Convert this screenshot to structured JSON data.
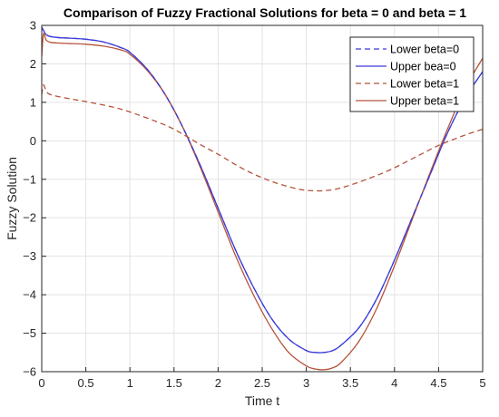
{
  "chart_data": {
    "type": "line",
    "title": "Comparison of Fuzzy Fractional Solutions for beta = 0 and beta = 1",
    "xlabel": "Time t",
    "ylabel": "Fuzzy Solution",
    "xlim": [
      0,
      5
    ],
    "ylim": [
      -6,
      3
    ],
    "grid": true,
    "legend_position": "top-right",
    "x_ticks": [
      0,
      0.5,
      1,
      1.5,
      2,
      2.5,
      3,
      3.5,
      4,
      4.5,
      5
    ],
    "x_tick_labels": [
      "0",
      "0.5",
      "1",
      "1.5",
      "2",
      "2.5",
      "3",
      "3.5",
      "4",
      "4.5",
      "5"
    ],
    "y_ticks": [
      -6,
      -5,
      -4,
      -3,
      -2,
      -1,
      0,
      1,
      2,
      3
    ],
    "y_tick_labels": [
      "−6",
      "−5",
      "−4",
      "−3",
      "−2",
      "−1",
      "0",
      "1",
      "2",
      "3"
    ],
    "legend": {
      "entries": [
        "Lower beta=0",
        "Upper bea=0",
        "Lower beta=1",
        "Upper beta=1"
      ]
    },
    "series": [
      {
        "name": "Lower beta=0",
        "color": "#3c3cd8",
        "dash": "dashed",
        "x": [
          0,
          0.02,
          0.05,
          0.1,
          0.2,
          0.3,
          0.5,
          0.7,
          0.9,
          1.0,
          1.2,
          1.4,
          1.6,
          1.8,
          2.0,
          2.2,
          2.4,
          2.6,
          2.8,
          3.0,
          3.1,
          3.2,
          3.3,
          3.4,
          3.6,
          3.8,
          4.0,
          4.2,
          4.4,
          4.6,
          4.8,
          5.0
        ],
        "values": [
          2.95,
          2.87,
          2.76,
          2.71,
          2.68,
          2.67,
          2.64,
          2.57,
          2.42,
          2.3,
          1.85,
          1.2,
          0.35,
          -0.65,
          -1.75,
          -2.85,
          -3.8,
          -4.6,
          -5.15,
          -5.45,
          -5.5,
          -5.5,
          -5.45,
          -5.3,
          -4.85,
          -4.1,
          -3.1,
          -2.0,
          -0.9,
          0.2,
          1.1,
          1.8
        ]
      },
      {
        "name": "Upper bea=0",
        "color": "#3c3cd8",
        "dash": "solid",
        "x": [
          0,
          0.02,
          0.05,
          0.1,
          0.2,
          0.3,
          0.5,
          0.7,
          0.9,
          1.0,
          1.2,
          1.4,
          1.6,
          1.8,
          2.0,
          2.2,
          2.4,
          2.6,
          2.8,
          3.0,
          3.1,
          3.2,
          3.3,
          3.4,
          3.6,
          3.8,
          4.0,
          4.2,
          4.4,
          4.6,
          4.8,
          5.0
        ],
        "values": [
          2.95,
          2.87,
          2.76,
          2.71,
          2.68,
          2.67,
          2.64,
          2.57,
          2.42,
          2.3,
          1.85,
          1.2,
          0.35,
          -0.65,
          -1.75,
          -2.85,
          -3.8,
          -4.6,
          -5.15,
          -5.45,
          -5.5,
          -5.5,
          -5.45,
          -5.3,
          -4.85,
          -4.1,
          -3.1,
          -2.0,
          -0.9,
          0.2,
          1.1,
          1.8
        ]
      },
      {
        "name": "Lower beta=1",
        "color": "#b5533a",
        "dash": "dashed",
        "x": [
          0,
          0.02,
          0.05,
          0.1,
          0.3,
          0.5,
          0.8,
          1.0,
          1.3,
          1.5,
          1.8,
          2.0,
          2.3,
          2.6,
          2.9,
          3.1,
          3.3,
          3.5,
          3.8,
          4.0,
          4.3,
          4.5,
          4.8,
          5.0
        ],
        "values": [
          1.2,
          1.45,
          1.3,
          1.2,
          1.1,
          1.02,
          0.88,
          0.75,
          0.5,
          0.3,
          -0.1,
          -0.35,
          -0.75,
          -1.05,
          -1.25,
          -1.3,
          -1.27,
          -1.15,
          -0.9,
          -0.7,
          -0.35,
          -0.12,
          0.15,
          0.3
        ]
      },
      {
        "name": "Upper beta=1",
        "color": "#b5533a",
        "dash": "solid",
        "x": [
          0,
          0.02,
          0.05,
          0.1,
          0.2,
          0.3,
          0.5,
          0.7,
          0.9,
          1.0,
          1.2,
          1.4,
          1.6,
          1.8,
          2.0,
          2.2,
          2.4,
          2.6,
          2.8,
          3.0,
          3.1,
          3.2,
          3.3,
          3.4,
          3.6,
          3.8,
          4.0,
          4.2,
          4.4,
          4.6,
          4.8,
          5.0
        ],
        "values": [
          2.2,
          2.78,
          2.62,
          2.56,
          2.54,
          2.53,
          2.51,
          2.46,
          2.36,
          2.25,
          1.82,
          1.2,
          0.35,
          -0.7,
          -1.85,
          -3.0,
          -4.0,
          -4.85,
          -5.5,
          -5.85,
          -5.93,
          -5.95,
          -5.9,
          -5.75,
          -5.2,
          -4.35,
          -3.25,
          -2.05,
          -0.85,
          0.3,
          1.35,
          2.15
        ]
      }
    ]
  }
}
